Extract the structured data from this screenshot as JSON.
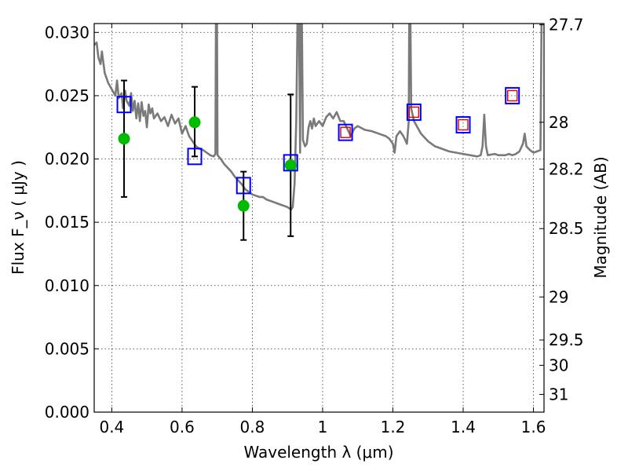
{
  "chart_data": {
    "type": "scatter",
    "title": "",
    "xlabel": "Wavelength  λ (μm)",
    "ylabel": "Flux  F_ν  ( μJy )",
    "ylabel_right": "Magnitude (AB)",
    "xlim": [
      0.35,
      1.63
    ],
    "ylim": [
      0.0,
      0.0307
    ],
    "grid": true,
    "x_ticks": [
      0.4,
      0.6,
      0.8,
      1.0,
      1.2,
      1.4,
      1.6
    ],
    "x_tick_labels": [
      "0.4",
      "0.6",
      "0.8",
      "1",
      "1.2",
      "1.4",
      "1.6"
    ],
    "y_ticks": [
      0.0,
      0.005,
      0.01,
      0.015,
      0.02,
      0.025,
      0.03
    ],
    "y_tick_labels": [
      "0.000",
      "0.005",
      "0.010",
      "0.015",
      "0.020",
      "0.025",
      "0.030"
    ],
    "right_ticks": [
      {
        "label": "27.7",
        "flux": 0.0306
      },
      {
        "label": "28",
        "flux": 0.0229
      },
      {
        "label": "28.2",
        "flux": 0.0192
      },
      {
        "label": "28.5",
        "flux": 0.0145
      },
      {
        "label": "29",
        "flux": 0.0091
      },
      {
        "label": "29.5",
        "flux": 0.0057
      },
      {
        "label": "30",
        "flux": 0.0037
      },
      {
        "label": "31",
        "flux": 0.0014
      }
    ],
    "series": [
      {
        "kind": "spectrum",
        "color": "#7a7a7a",
        "points": [
          [
            0.35,
            0.029
          ],
          [
            0.357,
            0.0292
          ],
          [
            0.362,
            0.028
          ],
          [
            0.368,
            0.0275
          ],
          [
            0.372,
            0.0285
          ],
          [
            0.38,
            0.0268
          ],
          [
            0.39,
            0.026
          ],
          [
            0.4,
            0.0255
          ],
          [
            0.41,
            0.025
          ],
          [
            0.415,
            0.0262
          ],
          [
            0.42,
            0.0248
          ],
          [
            0.428,
            0.0252
          ],
          [
            0.432,
            0.024
          ],
          [
            0.438,
            0.0254
          ],
          [
            0.442,
            0.0246
          ],
          [
            0.45,
            0.0242
          ],
          [
            0.455,
            0.0252
          ],
          [
            0.46,
            0.0238
          ],
          [
            0.465,
            0.0246
          ],
          [
            0.47,
            0.0232
          ],
          [
            0.475,
            0.0244
          ],
          [
            0.48,
            0.023
          ],
          [
            0.485,
            0.0245
          ],
          [
            0.49,
            0.0234
          ],
          [
            0.495,
            0.0238
          ],
          [
            0.5,
            0.0225
          ],
          [
            0.505,
            0.0243
          ],
          [
            0.51,
            0.0236
          ],
          [
            0.515,
            0.024
          ],
          [
            0.52,
            0.0232
          ],
          [
            0.53,
            0.0236
          ],
          [
            0.54,
            0.023
          ],
          [
            0.55,
            0.0233
          ],
          [
            0.56,
            0.0226
          ],
          [
            0.57,
            0.0235
          ],
          [
            0.58,
            0.0228
          ],
          [
            0.59,
            0.0232
          ],
          [
            0.6,
            0.022
          ],
          [
            0.61,
            0.0226
          ],
          [
            0.62,
            0.0218
          ],
          [
            0.63,
            0.0214
          ],
          [
            0.64,
            0.021
          ],
          [
            0.65,
            0.0208
          ],
          [
            0.66,
            0.0207
          ],
          [
            0.67,
            0.0205
          ],
          [
            0.68,
            0.0203
          ],
          [
            0.69,
            0.0202
          ],
          [
            0.695,
            0.0204
          ],
          [
            0.697,
            0.034
          ],
          [
            0.699,
            0.034
          ],
          [
            0.701,
            0.0203
          ],
          [
            0.71,
            0.02
          ],
          [
            0.72,
            0.0196
          ],
          [
            0.73,
            0.0193
          ],
          [
            0.74,
            0.019
          ],
          [
            0.75,
            0.0186
          ],
          [
            0.76,
            0.0183
          ],
          [
            0.77,
            0.018
          ],
          [
            0.78,
            0.0176
          ],
          [
            0.79,
            0.0174
          ],
          [
            0.8,
            0.0172
          ],
          [
            0.81,
            0.0171
          ],
          [
            0.82,
            0.017
          ],
          [
            0.83,
            0.017
          ],
          [
            0.84,
            0.0168
          ],
          [
            0.85,
            0.0167
          ],
          [
            0.86,
            0.0166
          ],
          [
            0.87,
            0.0165
          ],
          [
            0.88,
            0.0164
          ],
          [
            0.89,
            0.0163
          ],
          [
            0.9,
            0.0162
          ],
          [
            0.91,
            0.016
          ],
          [
            0.915,
            0.0162
          ],
          [
            0.92,
            0.018
          ],
          [
            0.925,
            0.023
          ],
          [
            0.93,
            0.034
          ],
          [
            0.932,
            0.034
          ],
          [
            0.936,
            0.0205
          ],
          [
            0.938,
            0.034
          ],
          [
            0.94,
            0.034
          ],
          [
            0.944,
            0.0215
          ],
          [
            0.95,
            0.021
          ],
          [
            0.955,
            0.0212
          ],
          [
            0.96,
            0.0225
          ],
          [
            0.965,
            0.023
          ],
          [
            0.97,
            0.0224
          ],
          [
            0.975,
            0.0232
          ],
          [
            0.98,
            0.0226
          ],
          [
            0.99,
            0.023
          ],
          [
            1.0,
            0.0226
          ],
          [
            1.01,
            0.0233
          ],
          [
            1.02,
            0.0236
          ],
          [
            1.03,
            0.0232
          ],
          [
            1.04,
            0.0237
          ],
          [
            1.05,
            0.023
          ],
          [
            1.06,
            0.023
          ],
          [
            1.07,
            0.0224
          ],
          [
            1.08,
            0.0218
          ],
          [
            1.09,
            0.0224
          ],
          [
            1.1,
            0.0226
          ],
          [
            1.12,
            0.0223
          ],
          [
            1.14,
            0.0222
          ],
          [
            1.16,
            0.022
          ],
          [
            1.18,
            0.0218
          ],
          [
            1.19,
            0.0216
          ],
          [
            1.2,
            0.0212
          ],
          [
            1.205,
            0.0205
          ],
          [
            1.21,
            0.0218
          ],
          [
            1.22,
            0.0222
          ],
          [
            1.23,
            0.0218
          ],
          [
            1.24,
            0.0212
          ],
          [
            1.245,
            0.023
          ],
          [
            1.247,
            0.034
          ],
          [
            1.249,
            0.034
          ],
          [
            1.252,
            0.024
          ],
          [
            1.26,
            0.023
          ],
          [
            1.27,
            0.0225
          ],
          [
            1.28,
            0.022
          ],
          [
            1.3,
            0.0214
          ],
          [
            1.32,
            0.021
          ],
          [
            1.34,
            0.0208
          ],
          [
            1.36,
            0.0206
          ],
          [
            1.38,
            0.0205
          ],
          [
            1.4,
            0.0204
          ],
          [
            1.42,
            0.0203
          ],
          [
            1.44,
            0.0202
          ],
          [
            1.45,
            0.0203
          ],
          [
            1.455,
            0.021
          ],
          [
            1.46,
            0.0235
          ],
          [
            1.465,
            0.021
          ],
          [
            1.47,
            0.0203
          ],
          [
            1.49,
            0.0204
          ],
          [
            1.5,
            0.0203
          ],
          [
            1.52,
            0.0203
          ],
          [
            1.53,
            0.0204
          ],
          [
            1.54,
            0.0203
          ],
          [
            1.55,
            0.0204
          ],
          [
            1.56,
            0.0206
          ],
          [
            1.57,
            0.0212
          ],
          [
            1.575,
            0.022
          ],
          [
            1.58,
            0.021
          ],
          [
            1.59,
            0.0207
          ],
          [
            1.6,
            0.0205
          ],
          [
            1.61,
            0.0206
          ],
          [
            1.62,
            0.0207
          ],
          [
            1.624,
            0.034
          ]
        ]
      },
      {
        "kind": "observed",
        "color": "#00bb00",
        "points": [
          {
            "x": 0.435,
            "y": 0.0216,
            "yerr_low": 0.017,
            "yerr_high": 0.0262
          },
          {
            "x": 0.636,
            "y": 0.0229,
            "yerr_low": 0.0202,
            "yerr_high": 0.0257
          },
          {
            "x": 0.775,
            "y": 0.0163,
            "yerr_low": 0.0136,
            "yerr_high": 0.019
          },
          {
            "x": 0.909,
            "y": 0.0195,
            "yerr_low": 0.0139,
            "yerr_high": 0.0251
          }
        ]
      },
      {
        "kind": "model",
        "color": "#0000ff",
        "points": [
          {
            "x": 0.435,
            "y": 0.0243
          },
          {
            "x": 0.636,
            "y": 0.0202
          },
          {
            "x": 0.775,
            "y": 0.0179
          },
          {
            "x": 0.909,
            "y": 0.0197
          },
          {
            "x": 1.065,
            "y": 0.0221
          },
          {
            "x": 1.26,
            "y": 0.0237
          },
          {
            "x": 1.4,
            "y": 0.0227
          },
          {
            "x": 1.54,
            "y": 0.025
          }
        ]
      },
      {
        "kind": "model-inner",
        "color": "#dd0000",
        "points": [
          {
            "x": 1.065,
            "y": 0.0221
          },
          {
            "x": 1.26,
            "y": 0.0237
          },
          {
            "x": 1.4,
            "y": 0.0227
          },
          {
            "x": 1.54,
            "y": 0.025
          }
        ]
      }
    ]
  }
}
